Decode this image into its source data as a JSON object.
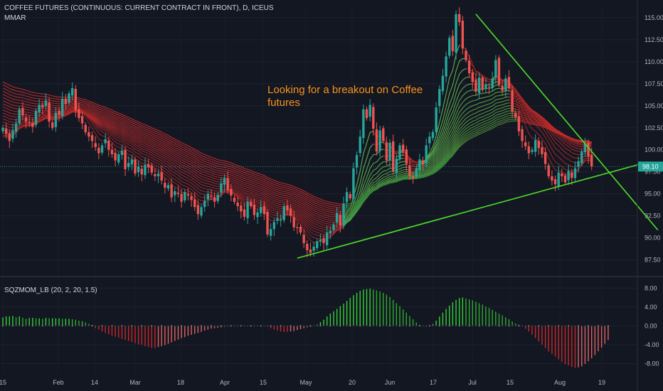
{
  "header": {
    "title": "COFFEE FUTURES (CONTINUOUS: CURRENT CONTRACT IN FRONT), D, ICEUS",
    "indicator": "MMAR"
  },
  "annotation": "Looking for a breakout on Coffee futures",
  "colors": {
    "background": "#131722",
    "up": "#26a69a",
    "down": "#ef5350",
    "ribbon_red": "#d32f2f",
    "ribbon_green": "#4caf50",
    "trendline": "#4dde2a",
    "annotation": "#f7931a",
    "hist_green": "#2eac2e",
    "hist_red": "#c62828",
    "price_label_bg": "#26a69a"
  },
  "chart_data": [
    {
      "type": "candlestick",
      "name": "price",
      "x_ticks": [
        "15",
        "Feb",
        "14",
        "Mar",
        "18",
        "Apr",
        "15",
        "May",
        "20",
        "Jun",
        "17",
        "Jul",
        "15",
        "Aug",
        "19"
      ],
      "y_ticks": [
        "115.00",
        "112.50",
        "110.00",
        "107.50",
        "105.00",
        "102.50",
        "100.00",
        "97.50",
        "95.00",
        "92.50",
        "90.00",
        "87.50"
      ],
      "ylim": [
        86.5,
        116.2
      ],
      "last_price": "98.10",
      "close": [
        102.5,
        101.8,
        101.0,
        102.2,
        103.0,
        104.6,
        103.9,
        103.2,
        103.0,
        102.6,
        104.4,
        105.1,
        104.8,
        105.6,
        103.2,
        102.5,
        104.2,
        104.0,
        105.8,
        105.2,
        106.4,
        107.0,
        104.5,
        103.6,
        103.0,
        102.0,
        101.5,
        101.0,
        100.3,
        99.6,
        100.5,
        101.2,
        100.0,
        99.5,
        98.8,
        99.5,
        99.9,
        97.8,
        98.5,
        98.9,
        97.3,
        98.1,
        97.2,
        98.3,
        98.0,
        97.4,
        97.0,
        97.3,
        96.5,
        95.7,
        96.0,
        94.6,
        95.3,
        95.0,
        94.1,
        95.2,
        94.8,
        94.3,
        93.5,
        92.7,
        93.5,
        94.2,
        95.0,
        94.7,
        94.1,
        94.9,
        96.2,
        96.8,
        95.4,
        94.8,
        94.1,
        93.6,
        93.0,
        92.4,
        94.1,
        93.6,
        92.6,
        92.9,
        93.5,
        92.7,
        90.4,
        91.0,
        91.8,
        92.2,
        92.1,
        93.6,
        93.1,
        92.5,
        91.2,
        91.1,
        90.6,
        89.4,
        88.6,
        88.3,
        89.0,
        89.6,
        89.8,
        89.4,
        90.6,
        90.8,
        91.5,
        92.8,
        91.4,
        93.9,
        95.2,
        94.5,
        97.9,
        99.4,
        101.5,
        104.6,
        103.6,
        105.1,
        102.4,
        99.8,
        102.2,
        101.0,
        98.8,
        100.8,
        97.6,
        99.0,
        100.5,
        99.8,
        98.4,
        97.0,
        96.8,
        97.9,
        98.9,
        98.4,
        100.5,
        101.5,
        102.0,
        104.8,
        106.9,
        108.4,
        110.6,
        112.7,
        111.2,
        115.4,
        114.5,
        111.5,
        110.2,
        108.7,
        107.7,
        106.6,
        108.2,
        106.8,
        107.4,
        107.1,
        108.1,
        110.2,
        107.4,
        106.7,
        108.1,
        107.0,
        104.3,
        103.7,
        102.1,
        101.0,
        100.4,
        99.6,
        100.0,
        101.1,
        100.2,
        99.5,
        98.4,
        97.0,
        96.5,
        96.1,
        97.4,
        97.0,
        96.3,
        97.6,
        96.8,
        97.9,
        98.7,
        99.8,
        100.7,
        99.2,
        98.1
      ],
      "ribbon_upper_start": 108.0,
      "ribbon_upper_bottom": 97.4,
      "ribbon_upper_end": 100.6,
      "trendlines": [
        {
          "from": [
            143,
            115.4
          ],
          "to": [
            187,
            95.8
          ]
        },
        {
          "from": [
            89,
            87.7
          ],
          "to": [
            189,
            98.0
          ]
        }
      ]
    },
    {
      "type": "histogram",
      "name": "SQZMOM_LB (20, 2, 20, 1.5)",
      "y_ticks": [
        "8.00",
        "4.00",
        "0.00",
        "-4.00",
        "-8.00"
      ],
      "ylim": [
        -10.2,
        10.0
      ],
      "values": [
        1.8,
        2.0,
        2.0,
        2.1,
        1.8,
        2.0,
        1.7,
        1.5,
        1.7,
        1.7,
        1.6,
        1.6,
        1.5,
        1.7,
        1.6,
        1.6,
        1.6,
        1.6,
        1.5,
        1.5,
        1.5,
        1.4,
        1.3,
        1.1,
        1.0,
        0.7,
        0.4,
        0.2,
        -0.5,
        -0.8,
        -1.2,
        -1.5,
        -1.8,
        -2.1,
        -2.3,
        -2.5,
        -2.8,
        -3.0,
        -3.2,
        -3.4,
        -3.7,
        -3.9,
        -4.0,
        -4.3,
        -4.5,
        -4.7,
        -4.7,
        -4.5,
        -4.3,
        -4.1,
        -3.8,
        -3.5,
        -3.2,
        -2.9,
        -2.6,
        -2.4,
        -2.1,
        -1.9,
        -1.7,
        -1.5,
        -1.3,
        -1.0,
        -0.8,
        -0.6,
        -0.5,
        -0.4,
        -0.3,
        -0.2,
        -0.2,
        -0.1,
        -0.1,
        -0.1,
        -0.1,
        -0.1,
        -0.1,
        -0.1,
        -0.1,
        -0.1,
        -0.1,
        -0.1,
        -0.2,
        -0.5,
        -0.8,
        -1.0,
        -1.2,
        -1.3,
        -1.3,
        -1.2,
        -1.1,
        -0.9,
        -0.7,
        -0.5,
        -0.3,
        -0.2,
        -0.1,
        0.3,
        0.8,
        1.3,
        2.0,
        2.6,
        3.1,
        3.6,
        4.2,
        4.7,
        5.3,
        5.9,
        6.5,
        7.0,
        7.4,
        7.7,
        7.8,
        7.9,
        7.7,
        7.5,
        7.3,
        7.0,
        6.6,
        6.1,
        5.5,
        4.8,
        4.2,
        3.5,
        2.8,
        2.1,
        1.4,
        0.7,
        0.2,
        -0.1,
        -0.2,
        -0.1,
        0.4,
        1.1,
        2.0,
        2.8,
        3.6,
        4.3,
        5.0,
        5.5,
        5.9,
        6.0,
        5.8,
        5.6,
        5.4,
        5.1,
        4.8,
        4.5,
        4.1,
        3.8,
        3.4,
        3.0,
        2.6,
        2.2,
        1.8,
        1.4,
        0.9,
        0.5,
        0.2,
        -0.1,
        -0.6,
        -1.2,
        -1.9,
        -2.6,
        -3.3,
        -4.0,
        -4.7,
        -5.4,
        -6.0,
        -6.5,
        -7.1,
        -7.6,
        -8.1,
        -8.4,
        -8.7,
        -8.9,
        -8.8,
        -8.6,
        -8.1,
        -7.5,
        -6.9,
        -6.2,
        -5.4,
        -4.6,
        -3.8,
        -3.0
      ]
    }
  ]
}
